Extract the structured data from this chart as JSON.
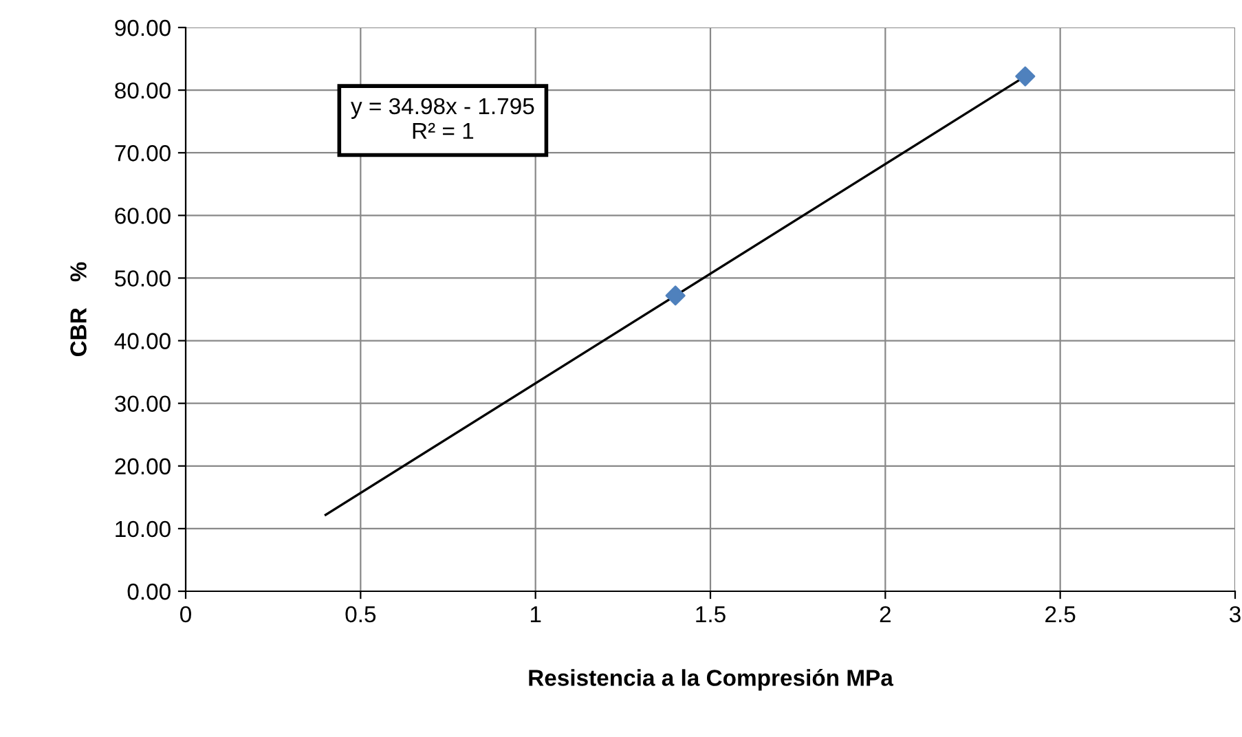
{
  "chart_data": {
    "type": "scatter",
    "xlabel": "Resistencia a la Compresión MPa",
    "ylabel": "CBR    %",
    "xlim": [
      0,
      3
    ],
    "xticks": [
      0,
      0.5,
      1,
      1.5,
      2,
      2.5,
      3
    ],
    "ylim": [
      0,
      90
    ],
    "yticks": [
      {
        "value": 0,
        "label": "0.00"
      },
      {
        "value": 10,
        "label": "10.00"
      },
      {
        "value": 20,
        "label": "20.00"
      },
      {
        "value": 30,
        "label": "30.00"
      },
      {
        "value": 40,
        "label": "40.00"
      },
      {
        "value": 50,
        "label": "50.00"
      },
      {
        "value": 60,
        "label": "60.00"
      },
      {
        "value": 70,
        "label": "70.00"
      },
      {
        "value": 80,
        "label": "80.00"
      },
      {
        "value": 90,
        "label": "90.00"
      }
    ],
    "grid": true,
    "legend": false,
    "series": [
      {
        "type": "scatter",
        "x": [
          1.4,
          2.4
        ],
        "values": [
          47.2,
          82.2
        ],
        "color": "#4f81bd",
        "marker": "diamond"
      },
      {
        "type": "line",
        "x": [
          0.4,
          2.4
        ],
        "values": [
          12.2,
          82.2
        ],
        "color": "#000000",
        "marker": "none",
        "line_style": "solid"
      }
    ],
    "annotations": [
      "y = 34.98x - 1.795\nR² = 1"
    ]
  }
}
